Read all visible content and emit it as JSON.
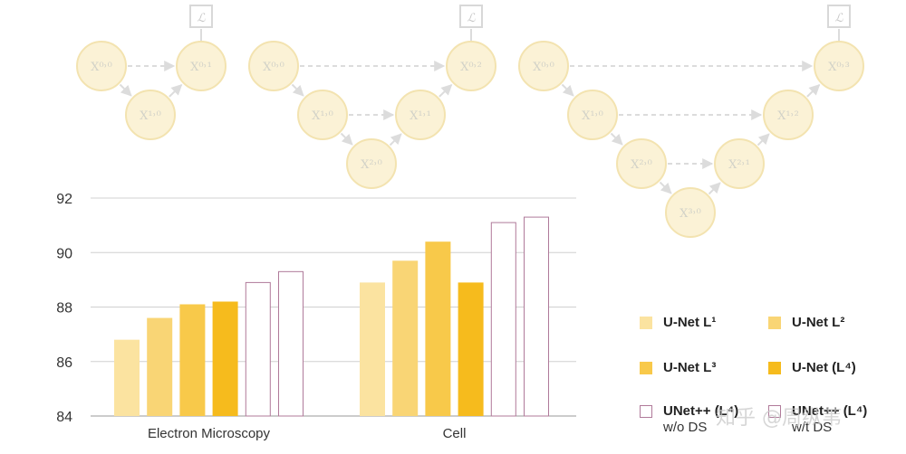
{
  "diagram": {
    "loss_symbol": "ℒ",
    "nodes": {
      "a": {
        "n00": "X⁰˒⁰",
        "n10": "X¹˒⁰",
        "n01": "X⁰˒¹"
      },
      "b": {
        "n00": "X⁰˒⁰",
        "n10": "X¹˒⁰",
        "n20": "X²˒⁰",
        "n11": "X¹˒¹",
        "n02": "X⁰˒²"
      },
      "c": {
        "n00": "X⁰˒⁰",
        "n10": "X¹˒⁰",
        "n20": "X²˒⁰",
        "n30": "X³˒⁰",
        "n21": "X²˒¹",
        "n12": "X¹˒²",
        "n03": "X⁰˒³"
      }
    }
  },
  "chart_data": {
    "type": "bar",
    "categories": [
      "Electron Microscopy",
      "Cell"
    ],
    "ylim": [
      84,
      92
    ],
    "yticks": [
      "84",
      "86",
      "88",
      "90",
      "92"
    ],
    "series": [
      {
        "name": "U-Net L¹",
        "values": [
          86.8,
          88.9
        ],
        "color": "#fbe3a0",
        "style": "fill"
      },
      {
        "name": "U-Net L²",
        "values": [
          87.6,
          89.7
        ],
        "color": "#f9d575",
        "style": "fill"
      },
      {
        "name": "U-Net L³",
        "values": [
          88.1,
          90.4
        ],
        "color": "#f8c94a",
        "style": "fill"
      },
      {
        "name": "U-Net (L⁴)",
        "values": [
          88.2,
          88.9
        ],
        "color": "#f6bb1d",
        "style": "fill"
      },
      {
        "name": "UNet++ (L⁴)",
        "sub": "w/o DS",
        "values": [
          88.9,
          91.1
        ],
        "color": "#b07a9a",
        "style": "outline"
      },
      {
        "name": "UNet++ (L⁴)",
        "sub": "w/t DS",
        "values": [
          89.3,
          91.3
        ],
        "color": "#b07a9a",
        "style": "outline"
      }
    ]
  },
  "watermark": "知乎 @周纵苇"
}
